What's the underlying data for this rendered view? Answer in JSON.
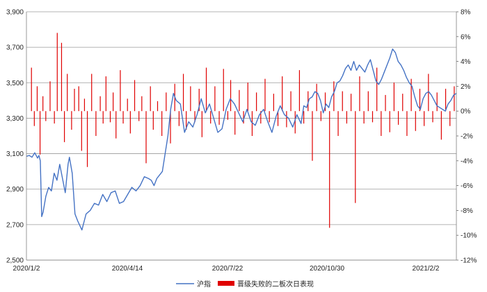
{
  "chart_data": {
    "type": "bar+line",
    "title": "",
    "x_tick_labels": [
      "2020/1/2",
      "2020/4/14",
      "2020/7/22",
      "2020/10/30",
      "2021/2/2"
    ],
    "left_axis": {
      "ylim": [
        2500,
        3900
      ],
      "ticks": [
        "2,500",
        "2,700",
        "2,900",
        "3,100",
        "3,300",
        "3,500",
        "3,700",
        "3,900"
      ]
    },
    "right_axis": {
      "unit": "%",
      "ylim": [
        -12,
        8
      ],
      "ticks": [
        "-12%",
        "-10%",
        "-8%",
        "-6%",
        "-4%",
        "-2%",
        "0%",
        "2%",
        "4%",
        "6%",
        "8%"
      ]
    },
    "grid": "horizontal",
    "legend_position": "bottom",
    "line_series": {
      "name": "沪指",
      "color": "#4472C4",
      "axis": "left",
      "x_index": [
        0,
        4,
        8,
        12,
        16,
        18,
        20,
        22,
        24,
        28,
        32,
        36,
        40,
        44,
        48,
        52,
        56,
        60,
        62,
        66,
        70,
        74,
        80,
        86,
        92,
        98,
        104,
        110,
        116,
        122,
        128,
        134,
        140,
        146,
        152,
        158,
        164,
        170,
        176,
        180,
        184,
        188,
        192,
        196,
        200,
        204,
        208,
        212,
        216,
        222,
        228,
        234,
        240,
        246,
        252,
        258,
        264,
        270,
        276,
        282,
        288,
        294,
        300,
        306,
        312,
        318,
        324,
        330,
        336,
        342,
        348,
        354,
        360,
        366,
        372,
        378,
        384,
        390,
        396,
        400,
        404,
        408,
        412,
        416,
        420,
        424,
        428,
        432,
        436,
        440,
        444,
        448,
        452,
        456,
        460,
        464,
        468,
        472,
        476,
        480,
        484,
        488,
        492,
        496,
        500,
        504,
        508,
        512,
        516,
        520,
        524,
        528,
        532,
        536,
        540,
        544,
        548,
        552,
        556,
        560,
        564,
        568,
        572,
        576,
        580,
        584,
        588,
        592,
        596,
        600,
        604,
        608,
        612,
        616,
        620
      ],
      "values": [
        3085,
        3090,
        3080,
        3105,
        3075,
        3090,
        3060,
        2745,
        2770,
        2860,
        2910,
        2890,
        2990,
        2950,
        3040,
        2960,
        2880,
        3040,
        3080,
        2990,
        2760,
        2720,
        2670,
        2760,
        2780,
        2820,
        2810,
        2870,
        2830,
        2880,
        2890,
        2820,
        2830,
        2870,
        2910,
        2890,
        2920,
        2970,
        2960,
        2950,
        2920,
        2960,
        2980,
        3000,
        3100,
        3200,
        3350,
        3440,
        3400,
        3380,
        3220,
        3280,
        3250,
        3320,
        3410,
        3330,
        3380,
        3300,
        3220,
        3240,
        3350,
        3410,
        3380,
        3330,
        3280,
        3350,
        3280,
        3260,
        3320,
        3350,
        3280,
        3220,
        3310,
        3370,
        3320,
        3300,
        3250,
        3320,
        3270,
        3370,
        3360,
        3410,
        3420,
        3450,
        3440,
        3400,
        3330,
        3380,
        3360,
        3420,
        3450,
        3500,
        3510,
        3540,
        3580,
        3600,
        3570,
        3620,
        3570,
        3600,
        3580,
        3560,
        3600,
        3630,
        3570,
        3510,
        3490,
        3520,
        3560,
        3600,
        3640,
        3690,
        3670,
        3620,
        3600,
        3570,
        3530,
        3500,
        3480,
        3420,
        3370,
        3350,
        3410,
        3440,
        3450,
        3430,
        3400,
        3370,
        3360,
        3350,
        3340,
        3380,
        3400,
        3430,
        3440
      ]
    },
    "bar_series": {
      "name": "晋级失败的二板次日表现",
      "color": "#E00000",
      "axis": "right",
      "count": 300,
      "x_index": [
        3,
        5,
        7,
        9,
        11,
        13,
        16,
        19,
        21,
        24,
        26,
        28,
        31,
        33,
        36,
        38,
        40,
        42,
        45,
        48,
        51,
        53,
        55,
        58,
        60,
        62,
        65,
        67,
        70,
        72,
        75,
        78,
        80,
        83,
        86,
        88,
        91,
        94,
        97,
        100,
        103,
        106,
        109,
        111,
        114,
        117,
        120,
        122,
        125,
        128,
        131,
        134,
        137,
        140,
        142,
        145,
        148,
        151,
        154,
        157,
        160,
        163,
        166,
        169,
        172,
        175,
        178,
        181,
        184,
        187,
        190,
        193,
        196,
        199,
        202,
        205,
        208,
        211,
        214,
        217,
        220,
        223,
        226,
        229,
        232,
        235,
        238,
        241,
        244,
        247,
        250,
        253,
        256,
        259,
        262,
        265,
        268,
        271,
        274,
        277,
        280,
        283,
        286,
        289,
        292,
        295,
        298
      ],
      "values": [
        3.5,
        -1.2,
        2.0,
        -3.5,
        1.2,
        -0.8,
        2.4,
        -1.0,
        6.3,
        5.5,
        -2.5,
        3.0,
        -1.5,
        1.8,
        2.0,
        -3.2,
        1.0,
        -4.5,
        3.0,
        -2.0,
        1.2,
        -1.0,
        2.8,
        -0.9,
        1.5,
        -2.2,
        3.3,
        -1.0,
        1.0,
        -1.8,
        2.5,
        -0.8,
        1.2,
        -4.2,
        2.0,
        -1.5,
        0.8,
        -2.0,
        1.5,
        -2.6,
        2.2,
        -1.2,
        3.0,
        -1.5,
        2.0,
        -0.9,
        1.8,
        -2.1,
        3.5,
        -1.0,
        2.0,
        -1.1,
        3.4,
        -0.7,
        2.5,
        -1.9,
        1.7,
        -1.0,
        2.3,
        -2.0,
        1.5,
        -1.0,
        2.6,
        -0.9,
        1.4,
        -1.2,
        2.8,
        -1.3,
        1.6,
        -1.8,
        3.3,
        -1.0,
        1.6,
        -4.0,
        2.2,
        -0.8,
        1.5,
        -9.4,
        2.4,
        -2.0,
        1.6,
        -1.0,
        1.4,
        -7.4,
        2.8,
        -1.0,
        1.6,
        -0.9,
        3.5,
        -2.0,
        1.3,
        -1.7,
        2.3,
        -1.1,
        1.4,
        -2.0,
        2.6,
        -1.6,
        1.8,
        -1.2,
        3.0,
        -0.9,
        1.5,
        -2.3,
        1.8,
        -1.2,
        2.0
      ]
    }
  }
}
